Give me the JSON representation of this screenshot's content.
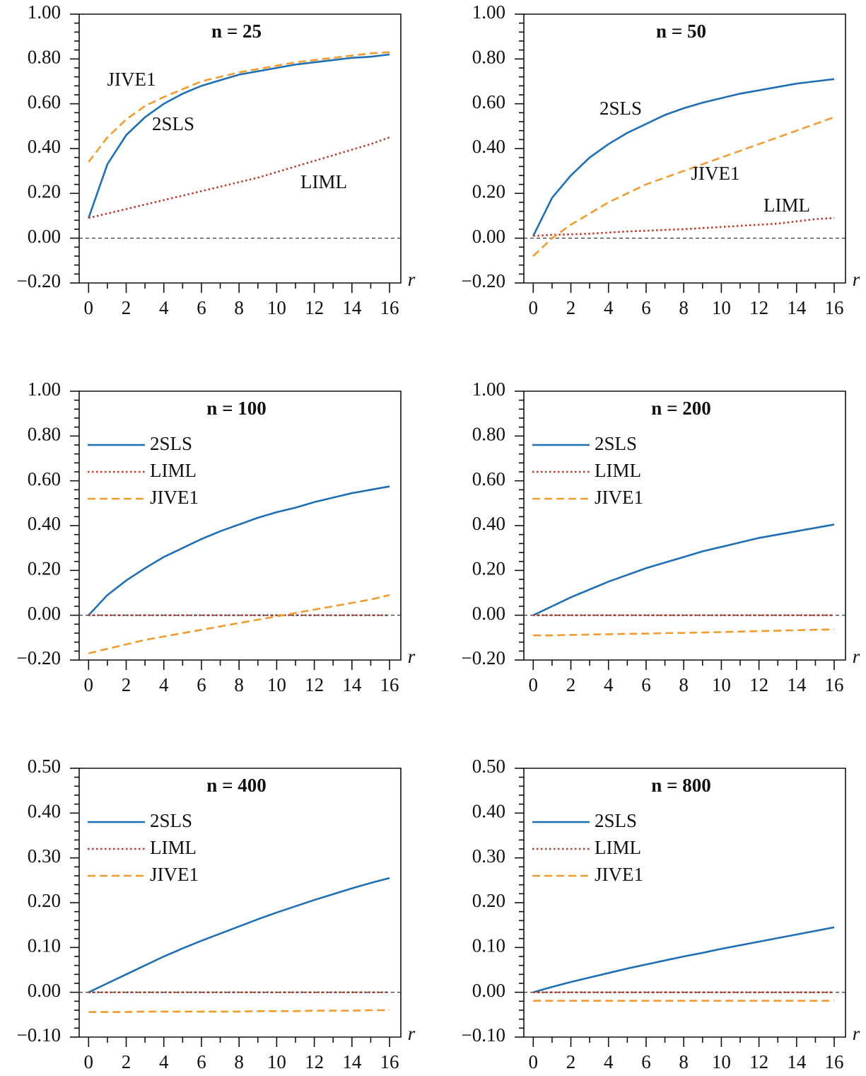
{
  "chart_data": [
    {
      "type": "line",
      "title": "n = 25",
      "x_label": "r",
      "legend": "inline",
      "x": [
        0,
        1,
        2,
        3,
        4,
        5,
        6,
        7,
        8,
        9,
        10,
        11,
        12,
        13,
        14,
        15,
        16
      ],
      "series": [
        {
          "name": "2SLS",
          "color": "#1f6fb4",
          "dash": "solid",
          "values": [
            0.09,
            0.33,
            0.46,
            0.54,
            0.6,
            0.645,
            0.68,
            0.705,
            0.73,
            0.745,
            0.76,
            0.775,
            0.785,
            0.795,
            0.805,
            0.81,
            0.82
          ]
        },
        {
          "name": "LIML",
          "color": "#b83a2c",
          "dash": "dotted",
          "values": [
            0.09,
            0.11,
            0.13,
            0.15,
            0.17,
            0.19,
            0.21,
            0.23,
            0.25,
            0.27,
            0.295,
            0.32,
            0.345,
            0.37,
            0.395,
            0.42,
            0.45
          ]
        },
        {
          "name": "JIVE1",
          "color": "#f29b30",
          "dash": "dashed",
          "values": [
            0.34,
            0.45,
            0.53,
            0.59,
            0.63,
            0.665,
            0.7,
            0.72,
            0.74,
            0.755,
            0.77,
            0.785,
            0.795,
            0.805,
            0.815,
            0.825,
            0.83
          ]
        }
      ],
      "xlim": [
        -0.5,
        16.6
      ],
      "xticks": [
        0,
        2,
        4,
        6,
        8,
        10,
        12,
        14,
        16
      ],
      "ylim": [
        -0.2,
        1.0
      ],
      "yticks": [
        {
          "value": -0.2,
          "label": "−0.20"
        },
        {
          "value": 0,
          "label": "0.00"
        },
        {
          "value": 0.2,
          "label": "0.20"
        },
        {
          "value": 0.4,
          "label": "0.40"
        },
        {
          "value": 0.6,
          "label": "0.60"
        },
        {
          "value": 0.8,
          "label": "0.80"
        },
        {
          "value": 1.0,
          "label": "1.00"
        }
      ],
      "hline": 0
    },
    {
      "type": "line",
      "title": "n = 50",
      "x_label": "r",
      "legend": "inline",
      "x": [
        0,
        1,
        2,
        3,
        4,
        5,
        6,
        7,
        8,
        9,
        10,
        11,
        12,
        13,
        14,
        15,
        16
      ],
      "series": [
        {
          "name": "2SLS",
          "color": "#1f6fb4",
          "dash": "solid",
          "values": [
            0.01,
            0.18,
            0.28,
            0.36,
            0.42,
            0.47,
            0.51,
            0.55,
            0.58,
            0.605,
            0.625,
            0.645,
            0.66,
            0.675,
            0.69,
            0.7,
            0.71
          ]
        },
        {
          "name": "LIML",
          "color": "#b83a2c",
          "dash": "dotted",
          "values": [
            0.01,
            0.015,
            0.017,
            0.02,
            0.025,
            0.03,
            0.033,
            0.037,
            0.04,
            0.045,
            0.05,
            0.055,
            0.06,
            0.065,
            0.075,
            0.085,
            0.09
          ]
        },
        {
          "name": "JIVE1",
          "color": "#f29b30",
          "dash": "dashed",
          "values": [
            -0.08,
            0.0,
            0.06,
            0.11,
            0.16,
            0.2,
            0.24,
            0.27,
            0.3,
            0.33,
            0.36,
            0.39,
            0.42,
            0.45,
            0.48,
            0.51,
            0.54
          ]
        }
      ],
      "xlim": [
        -0.5,
        16.6
      ],
      "xticks": [
        0,
        2,
        4,
        6,
        8,
        10,
        12,
        14,
        16
      ],
      "ylim": [
        -0.2,
        1.0
      ],
      "yticks": [
        {
          "value": -0.2,
          "label": "−0.20"
        },
        {
          "value": 0,
          "label": "0.00"
        },
        {
          "value": 0.2,
          "label": "0.20"
        },
        {
          "value": 0.4,
          "label": "0.40"
        },
        {
          "value": 0.6,
          "label": "0.60"
        },
        {
          "value": 0.8,
          "label": "0.80"
        },
        {
          "value": 1.0,
          "label": "1.00"
        }
      ],
      "hline": 0
    },
    {
      "type": "line",
      "title": "n = 100",
      "x_label": "r",
      "legend": "upper left",
      "x": [
        0,
        1,
        2,
        3,
        4,
        5,
        6,
        7,
        8,
        9,
        10,
        11,
        12,
        13,
        14,
        15,
        16
      ],
      "series": [
        {
          "name": "2SLS",
          "color": "#1f6fb4",
          "dash": "solid",
          "values": [
            0.0,
            0.09,
            0.155,
            0.21,
            0.26,
            0.3,
            0.34,
            0.375,
            0.405,
            0.435,
            0.46,
            0.48,
            0.505,
            0.525,
            0.545,
            0.56,
            0.575
          ]
        },
        {
          "name": "LIML",
          "color": "#b83a2c",
          "dash": "dotted",
          "values": [
            0,
            0,
            0,
            0,
            0,
            0,
            0,
            0,
            0,
            0,
            0,
            0,
            0,
            0,
            0,
            0,
            0
          ]
        },
        {
          "name": "JIVE1",
          "color": "#f29b30",
          "dash": "dashed",
          "values": [
            -0.17,
            -0.15,
            -0.13,
            -0.11,
            -0.095,
            -0.08,
            -0.065,
            -0.05,
            -0.035,
            -0.02,
            -0.005,
            0.01,
            0.025,
            0.04,
            0.055,
            0.07,
            0.09
          ]
        }
      ],
      "xlim": [
        -0.5,
        16.6
      ],
      "xticks": [
        0,
        2,
        4,
        6,
        8,
        10,
        12,
        14,
        16
      ],
      "ylim": [
        -0.2,
        1.0
      ],
      "yticks": [
        {
          "value": -0.2,
          "label": "−0.20"
        },
        {
          "value": 0,
          "label": "0.00"
        },
        {
          "value": 0.2,
          "label": "0.20"
        },
        {
          "value": 0.4,
          "label": "0.40"
        },
        {
          "value": 0.6,
          "label": "0.60"
        },
        {
          "value": 0.8,
          "label": "0.80"
        },
        {
          "value": 1.0,
          "label": "1.00"
        }
      ],
      "hline": 0
    },
    {
      "type": "line",
      "title": "n = 200",
      "x_label": "r",
      "legend": "upper left",
      "x": [
        0,
        1,
        2,
        3,
        4,
        5,
        6,
        7,
        8,
        9,
        10,
        11,
        12,
        13,
        14,
        15,
        16
      ],
      "series": [
        {
          "name": "2SLS",
          "color": "#1f6fb4",
          "dash": "solid",
          "values": [
            0.0,
            0.04,
            0.08,
            0.115,
            0.15,
            0.18,
            0.21,
            0.235,
            0.26,
            0.285,
            0.305,
            0.325,
            0.345,
            0.36,
            0.375,
            0.39,
            0.405
          ]
        },
        {
          "name": "LIML",
          "color": "#b83a2c",
          "dash": "dotted",
          "values": [
            0,
            0,
            0,
            0,
            0,
            0,
            0,
            0,
            0,
            0,
            0,
            0,
            0,
            0,
            0,
            0,
            0
          ]
        },
        {
          "name": "JIVE1",
          "color": "#f29b30",
          "dash": "dashed",
          "values": [
            -0.09,
            -0.09,
            -0.088,
            -0.086,
            -0.085,
            -0.083,
            -0.082,
            -0.08,
            -0.079,
            -0.077,
            -0.075,
            -0.073,
            -0.071,
            -0.069,
            -0.067,
            -0.065,
            -0.063
          ]
        }
      ],
      "xlim": [
        -0.5,
        16.6
      ],
      "xticks": [
        0,
        2,
        4,
        6,
        8,
        10,
        12,
        14,
        16
      ],
      "ylim": [
        -0.2,
        1.0
      ],
      "yticks": [
        {
          "value": -0.2,
          "label": "−0.20"
        },
        {
          "value": 0,
          "label": "0.00"
        },
        {
          "value": 0.2,
          "label": "0.20"
        },
        {
          "value": 0.4,
          "label": "0.40"
        },
        {
          "value": 0.6,
          "label": "0.60"
        },
        {
          "value": 0.8,
          "label": "0.80"
        },
        {
          "value": 1.0,
          "label": "1.00"
        }
      ],
      "hline": 0
    },
    {
      "type": "line",
      "title": "n = 400",
      "x_label": "r",
      "legend": "upper left",
      "x": [
        0,
        1,
        2,
        3,
        4,
        5,
        6,
        7,
        8,
        9,
        10,
        11,
        12,
        13,
        14,
        15,
        16
      ],
      "series": [
        {
          "name": "2SLS",
          "color": "#1f6fb4",
          "dash": "solid",
          "values": [
            0.0,
            0.02,
            0.04,
            0.06,
            0.08,
            0.098,
            0.115,
            0.131,
            0.147,
            0.163,
            0.178,
            0.192,
            0.206,
            0.219,
            0.232,
            0.244,
            0.255
          ]
        },
        {
          "name": "LIML",
          "color": "#b83a2c",
          "dash": "dotted",
          "values": [
            0,
            0,
            0,
            0,
            0,
            0,
            0,
            0,
            0,
            0,
            0,
            0,
            0,
            0,
            0,
            0,
            0
          ]
        },
        {
          "name": "JIVE1",
          "color": "#f29b30",
          "dash": "dashed",
          "values": [
            -0.044,
            -0.044,
            -0.044,
            -0.043,
            -0.043,
            -0.043,
            -0.043,
            -0.043,
            -0.043,
            -0.042,
            -0.042,
            -0.042,
            -0.041,
            -0.041,
            -0.041,
            -0.04,
            -0.04
          ]
        }
      ],
      "xlim": [
        -0.5,
        16.6
      ],
      "xticks": [
        0,
        2,
        4,
        6,
        8,
        10,
        12,
        14,
        16
      ],
      "ylim": [
        -0.1,
        0.5
      ],
      "yticks": [
        {
          "value": -0.1,
          "label": "−0.10"
        },
        {
          "value": 0,
          "label": "0.00"
        },
        {
          "value": 0.1,
          "label": "0.10"
        },
        {
          "value": 0.2,
          "label": "0.20"
        },
        {
          "value": 0.3,
          "label": "0.30"
        },
        {
          "value": 0.4,
          "label": "0.40"
        },
        {
          "value": 0.5,
          "label": "0.50"
        }
      ],
      "hline": 0
    },
    {
      "type": "line",
      "title": "n = 800",
      "x_label": "r",
      "legend": "upper left",
      "x": [
        0,
        1,
        2,
        3,
        4,
        5,
        6,
        7,
        8,
        9,
        10,
        11,
        12,
        13,
        14,
        15,
        16
      ],
      "series": [
        {
          "name": "2SLS",
          "color": "#1f6fb4",
          "dash": "solid",
          "values": [
            0,
            0.012,
            0.023,
            0.033,
            0.043,
            0.053,
            0.062,
            0.071,
            0.08,
            0.088,
            0.097,
            0.105,
            0.113,
            0.121,
            0.129,
            0.137,
            0.145
          ]
        },
        {
          "name": "LIML",
          "color": "#b83a2c",
          "dash": "dotted",
          "values": [
            0,
            0,
            0,
            0,
            0,
            0,
            0,
            0,
            0,
            0,
            0,
            0,
            0,
            0,
            0,
            0,
            0
          ]
        },
        {
          "name": "JIVE1",
          "color": "#f29b30",
          "dash": "dashed",
          "values": [
            -0.019,
            -0.019,
            -0.019,
            -0.019,
            -0.019,
            -0.019,
            -0.019,
            -0.019,
            -0.019,
            -0.019,
            -0.019,
            -0.019,
            -0.019,
            -0.019,
            -0.019,
            -0.019,
            -0.019
          ]
        }
      ],
      "xlim": [
        -0.5,
        16.6
      ],
      "xticks": [
        0,
        2,
        4,
        6,
        8,
        10,
        12,
        14,
        16
      ],
      "ylim": [
        -0.1,
        0.5
      ],
      "yticks": [
        {
          "value": -0.1,
          "label": "−0.10"
        },
        {
          "value": 0,
          "label": "0.00"
        },
        {
          "value": 0.1,
          "label": "0.10"
        },
        {
          "value": 0.2,
          "label": "0.20"
        },
        {
          "value": 0.3,
          "label": "0.30"
        },
        {
          "value": 0.4,
          "label": "0.40"
        },
        {
          "value": 0.5,
          "label": "0.50"
        }
      ],
      "hline": 0
    }
  ]
}
